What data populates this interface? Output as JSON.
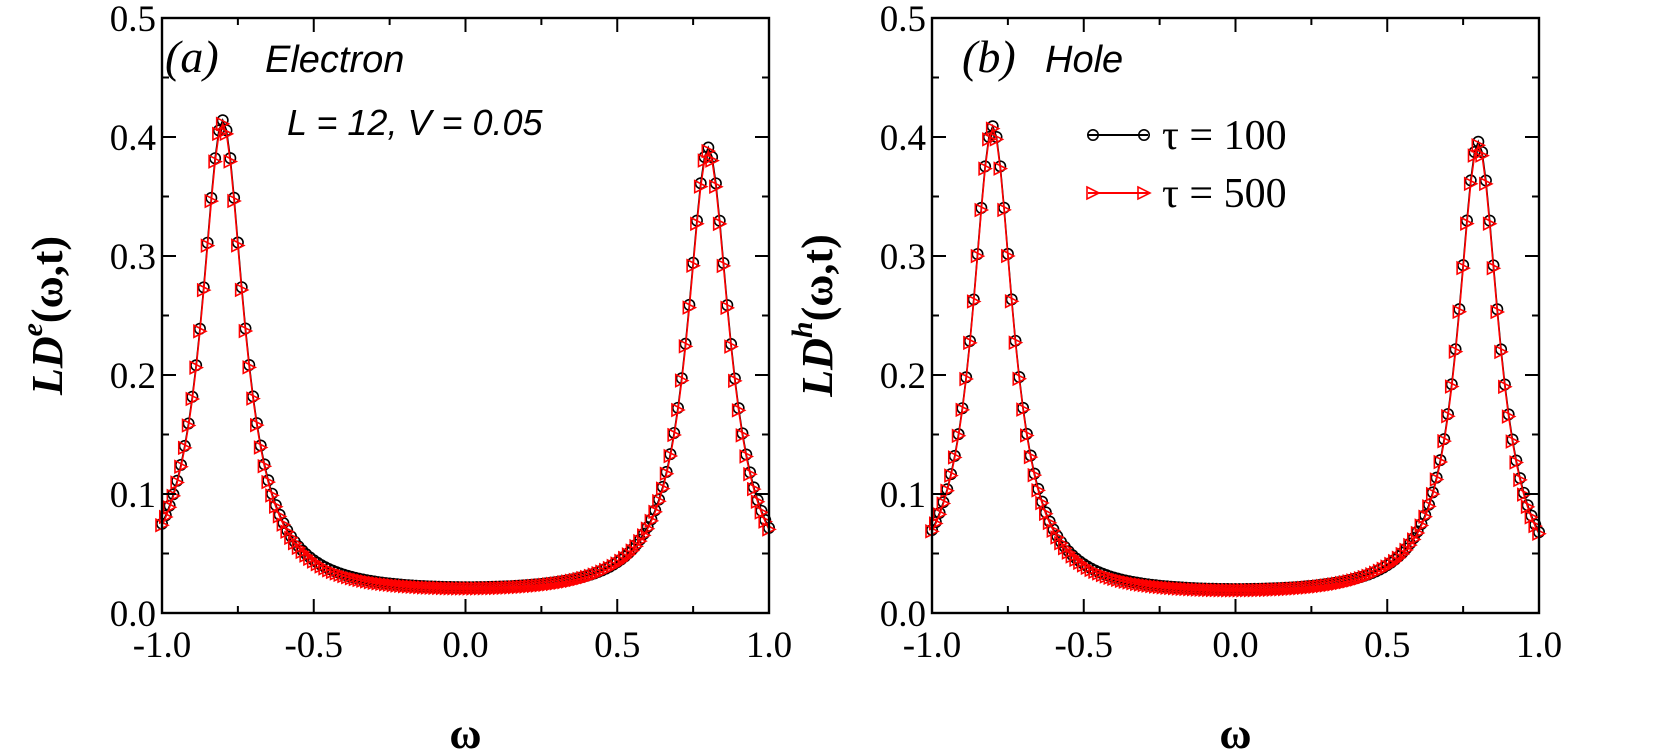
{
  "chart_data": [
    {
      "type": "line",
      "panel_tag": "(a)",
      "panel_name": "Electron",
      "annotation": "L = 12, V = 0.05",
      "xlabel": "ω",
      "ylabel_main": "LD",
      "ylabel_sup": "e",
      "ylabel_args": "(ω,t)",
      "xlim": [
        -1.0,
        1.0
      ],
      "ylim": [
        0.0,
        0.5
      ],
      "xticks": [
        "-1.0",
        "-0.5",
        "0.0",
        "0.5",
        "1.0"
      ],
      "yticks": [
        "0.0",
        "0.1",
        "0.2",
        "0.3",
        "0.4",
        "0.5"
      ],
      "xtick_values": [
        -1.0,
        -0.5,
        0.0,
        0.5,
        1.0
      ],
      "ytick_values": [
        0.0,
        0.1,
        0.2,
        0.3,
        0.4,
        0.5
      ],
      "series": [
        {
          "name": "τ = 100",
          "color": "#000000",
          "marker": "circle",
          "peaks": [
            {
              "center": -0.8,
              "height": 0.413,
              "width": 0.085
            },
            {
              "center": 0.8,
              "height": 0.39,
              "width": 0.085
            }
          ],
          "baseline": 0.013
        },
        {
          "name": "τ = 500",
          "color": "#ff0000",
          "marker": "triangle-right",
          "peaks": [
            {
              "center": -0.8,
              "height": 0.41,
              "width": 0.085
            },
            {
              "center": 0.8,
              "height": 0.387,
              "width": 0.085
            }
          ],
          "baseline": 0.012
        }
      ]
    },
    {
      "type": "line",
      "panel_tag": "(b)",
      "panel_name": "Hole",
      "xlabel": "ω",
      "ylabel_main": "LD",
      "ylabel_sup": "h",
      "ylabel_args": "(ω,t)",
      "xlim": [
        -1.0,
        1.0
      ],
      "ylim": [
        0.0,
        0.5
      ],
      "xticks": [
        "-1.0",
        "-0.5",
        "0.0",
        "0.5",
        "1.0"
      ],
      "yticks": [
        "0.0",
        "0.1",
        "0.2",
        "0.3",
        "0.4",
        "0.5"
      ],
      "xtick_values": [
        -1.0,
        -0.5,
        0.0,
        0.5,
        1.0
      ],
      "ytick_values": [
        0.0,
        0.1,
        0.2,
        0.3,
        0.4,
        0.5
      ],
      "legend": [
        {
          "label": "τ = 100",
          "color": "#000000",
          "marker": "circle"
        },
        {
          "label": "τ = 500",
          "color": "#ff0000",
          "marker": "triangle-right"
        }
      ],
      "series": [
        {
          "name": "τ = 100",
          "color": "#000000",
          "marker": "circle",
          "peaks": [
            {
              "center": -0.8,
              "height": 0.408,
              "width": 0.082
            },
            {
              "center": 0.8,
              "height": 0.395,
              "width": 0.082
            }
          ],
          "baseline": 0.012
        },
        {
          "name": "τ = 500",
          "color": "#ff0000",
          "marker": "triangle-right",
          "peaks": [
            {
              "center": -0.8,
              "height": 0.406,
              "width": 0.082
            },
            {
              "center": 0.8,
              "height": 0.392,
              "width": 0.082
            }
          ],
          "baseline": 0.011
        }
      ]
    }
  ]
}
